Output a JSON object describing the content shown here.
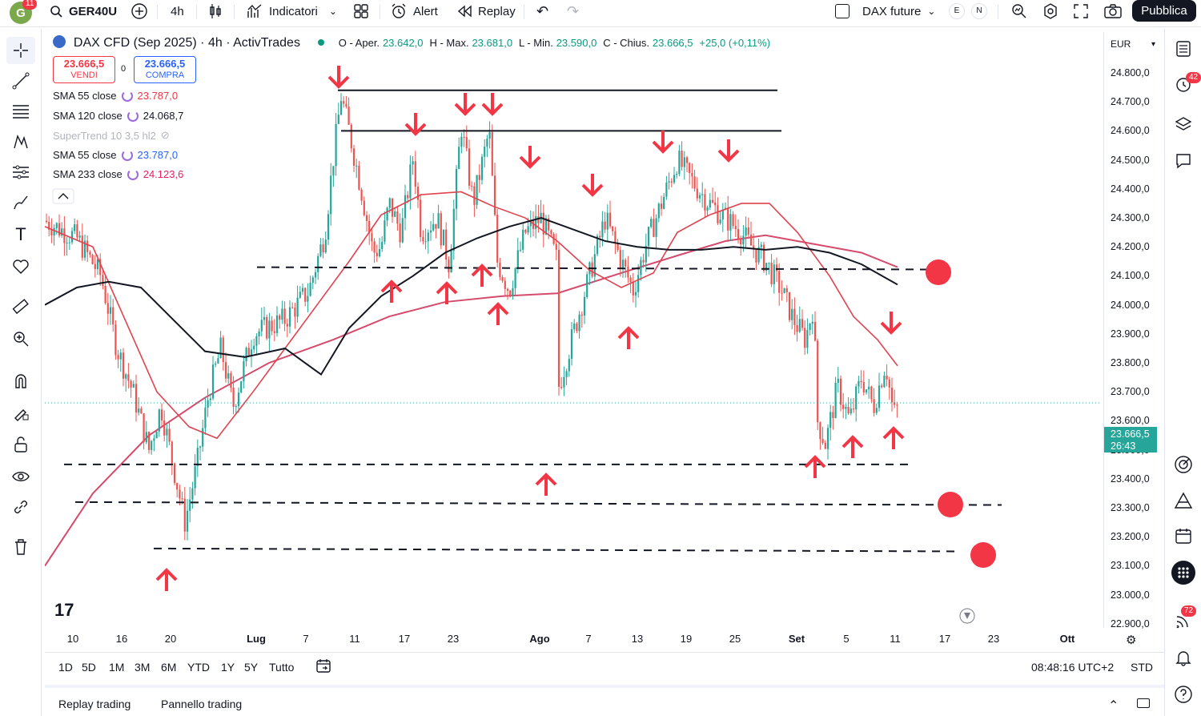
{
  "topbar": {
    "avatar_letter": "G",
    "avatar_badge": "11",
    "symbol": "GER40U",
    "interval": "4h",
    "indicators": "Indicatori",
    "alert": "Alert",
    "replay": "Replay",
    "compare_symbol": "DAX future",
    "e_label": "E",
    "n_label": "N",
    "publish": "Pubblica"
  },
  "chart_header": {
    "title": "DAX CFD (Sep 2025) · 4h · ActivTrades",
    "o_label": "O - Aper.",
    "o_value": "23.642,0",
    "h_label": "H - Max.",
    "h_value": "23.681,0",
    "l_label": "L - Min.",
    "l_value": "23.590,0",
    "c_label": "C - Chius.",
    "c_value": "23.666,5",
    "change": "+25,0 (+0,11%)"
  },
  "trade": {
    "sell_price": "23.666,5",
    "sell_label": "VENDI",
    "spread": "0",
    "buy_price": "23.666,5",
    "buy_label": "COMPRA"
  },
  "indicators": [
    {
      "name": "SMA 55 close",
      "value": "23.787,0",
      "color": "#f23645"
    },
    {
      "name": "SMA 120 close",
      "value": "24.068,7",
      "color": "#131722"
    },
    {
      "name": "SuperTrend 10 3,5 hl2",
      "value": "",
      "color": "#b2b5be"
    },
    {
      "name": "SMA 55 close",
      "value": "23.787,0",
      "color": "#2962ff"
    },
    {
      "name": "SMA 233 close",
      "value": "24.123,6",
      "color": "#e91e63"
    }
  ],
  "price_axis": {
    "currency": "EUR",
    "labels": [
      "24.800,0",
      "24.700,0",
      "24.600,0",
      "24.500,0",
      "24.400,0",
      "24.300,0",
      "24.200,0",
      "24.100,0",
      "24.000,0",
      "23.900,0",
      "23.800,0",
      "23.700,0",
      "23.600,0",
      "23.500,0",
      "23.400,0",
      "23.300,0",
      "23.200,0",
      "23.100,0",
      "23.000,0",
      "22.900,0"
    ],
    "current_price": "23.666,5",
    "countdown": "26:43"
  },
  "time_axis": [
    "10",
    "16",
    "20",
    "Lug",
    "7",
    "11",
    "17",
    "23",
    "Ago",
    "7",
    "13",
    "19",
    "25",
    "Set",
    "5",
    "11",
    "17",
    "23",
    "Ott"
  ],
  "ranges": [
    "1D",
    "5D",
    "1M",
    "3M",
    "6M",
    "YTD",
    "1Y",
    "5Y",
    "Tutto"
  ],
  "clock": "08:48:16 UTC+2",
  "session": "STD",
  "footer": {
    "tab1": "Replay trading",
    "tab2": "Pannello trading"
  },
  "right_badges": {
    "alerts": "42",
    "notifications": "72"
  },
  "chart_data": {
    "type": "line",
    "series": [
      {
        "name": "SMA 55 close",
        "color": "#f23645",
        "last": 23787.0
      },
      {
        "name": "SMA 120 close",
        "color": "#131722",
        "last": 24068.7
      },
      {
        "name": "SMA 233 close",
        "color": "#e91e63",
        "last": 24123.6
      }
    ],
    "ylim": [
      22900,
      24850
    ],
    "last_price": 23666.5,
    "horizontal_levels": [
      24740,
      24600,
      24130,
      23450,
      23320,
      23160
    ],
    "markers_down_count": 10,
    "markers_up_count": 10
  }
}
